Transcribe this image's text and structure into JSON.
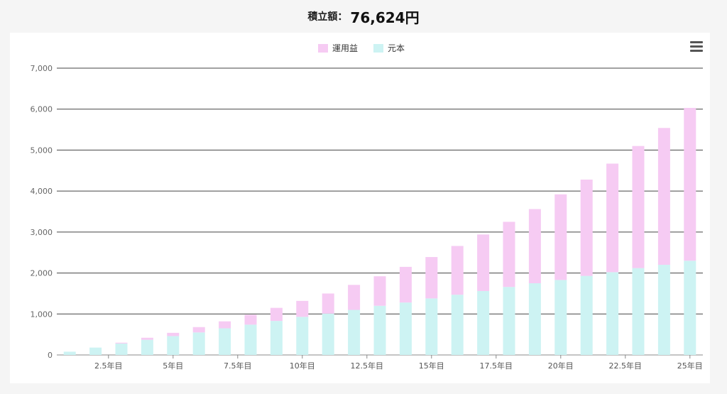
{
  "header": {
    "label": "積立額：",
    "value": "76,624円"
  },
  "menu": {
    "icon": "hamburger-menu-icon"
  },
  "colors": {
    "profit": "#f6cbf3",
    "principal": "#cdf3f3",
    "grid": "#444444",
    "axis": "#888888"
  },
  "chart_data": {
    "type": "bar",
    "stacked": true,
    "legend_position": "top",
    "ylim": [
      0,
      7000
    ],
    "yticks": [
      0,
      1000,
      2000,
      3000,
      4000,
      5000,
      6000,
      7000
    ],
    "ytick_labels": [
      "0",
      "1,000",
      "2,000",
      "3,000",
      "4,000",
      "5,000",
      "6,000",
      "7,000"
    ],
    "xtick_labels": [
      "2.5年目",
      "5年目",
      "7.5年目",
      "10年目",
      "12.5年目",
      "15年目",
      "17.5年目",
      "20年目",
      "22.5年目",
      "25年目"
    ],
    "xtick_positions": [
      2.5,
      5,
      7.5,
      10,
      12.5,
      15,
      17.5,
      20,
      22.5,
      25
    ],
    "x": [
      1,
      2,
      3,
      4,
      5,
      6,
      7,
      8,
      9,
      10,
      11,
      12,
      13,
      14,
      15,
      16,
      17,
      18,
      19,
      20,
      21,
      22,
      23,
      24,
      25
    ],
    "series": [
      {
        "name": "元本",
        "color": "#cdf3f3",
        "values": [
          80,
          180,
          280,
          370,
          460,
          550,
          650,
          740,
          830,
          930,
          1010,
          1100,
          1200,
          1280,
          1380,
          1470,
          1560,
          1660,
          1750,
          1830,
          1930,
          2020,
          2120,
          2200,
          2300
        ]
      },
      {
        "name": "運用益",
        "color": "#f6cbf3",
        "values": [
          0,
          0,
          20,
          50,
          80,
          130,
          170,
          240,
          320,
          390,
          490,
          610,
          720,
          870,
          1010,
          1190,
          1380,
          1590,
          1810,
          2090,
          2350,
          2650,
          2980,
          3340,
          3730
        ]
      }
    ]
  }
}
